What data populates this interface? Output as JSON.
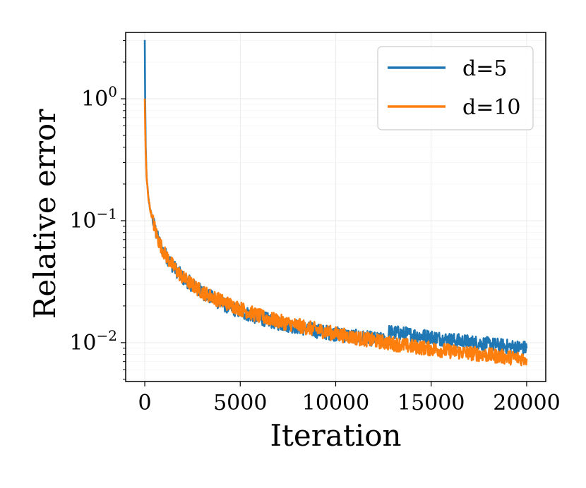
{
  "chart_data": {
    "type": "line",
    "title": "",
    "xlabel": "Iteration",
    "ylabel": "Relative error",
    "xscale": "linear",
    "yscale": "log",
    "xlim": [
      -1000,
      21000
    ],
    "ylim": [
      0.0048,
      3.5
    ],
    "grid": true,
    "legend_position": "top-right",
    "x_ticks": [
      {
        "value": 0,
        "label": "0"
      },
      {
        "value": 5000,
        "label": "5000"
      },
      {
        "value": 10000,
        "label": "10000"
      },
      {
        "value": 15000,
        "label": "15000"
      },
      {
        "value": 20000,
        "label": "20000"
      }
    ],
    "y_ticks": [
      {
        "value": 1,
        "base": "10",
        "exp": "0"
      },
      {
        "value": 0.1,
        "base": "10",
        "exp": "−1"
      },
      {
        "value": 0.01,
        "base": "10",
        "exp": "−2"
      }
    ],
    "series": [
      {
        "name": "d=5",
        "color": "#1f77b4",
        "x": [
          0,
          20,
          50,
          100,
          200,
          300,
          500,
          700,
          1000,
          1500,
          2000,
          3000,
          4000,
          5000,
          6000,
          7000,
          8000,
          9000,
          10000,
          11000,
          12000,
          12700,
          12800,
          13000,
          14000,
          15000,
          16000,
          17000,
          18000,
          19000,
          20000
        ],
        "y": [
          3.0,
          1.0,
          0.4,
          0.22,
          0.15,
          0.12,
          0.09,
          0.07,
          0.055,
          0.042,
          0.034,
          0.026,
          0.021,
          0.018,
          0.016,
          0.0145,
          0.0135,
          0.0125,
          0.0118,
          0.0112,
          0.0107,
          0.0104,
          0.0122,
          0.0121,
          0.0116,
          0.0111,
          0.0105,
          0.0101,
          0.0097,
          0.0093,
          0.009
        ]
      },
      {
        "name": "d=10",
        "color": "#ff7f0e",
        "x": [
          0,
          20,
          50,
          100,
          200,
          300,
          500,
          700,
          1000,
          1500,
          2000,
          3000,
          4000,
          5000,
          6000,
          7000,
          8000,
          9000,
          10000,
          11000,
          12000,
          13000,
          14000,
          15000,
          16000,
          17000,
          18000,
          19000,
          20000
        ],
        "y": [
          1.0,
          0.6,
          0.35,
          0.22,
          0.15,
          0.12,
          0.09,
          0.07,
          0.055,
          0.042,
          0.034,
          0.026,
          0.022,
          0.019,
          0.0165,
          0.015,
          0.0138,
          0.0128,
          0.0118,
          0.011,
          0.0104,
          0.0098,
          0.0093,
          0.0089,
          0.0085,
          0.0082,
          0.0079,
          0.0076,
          0.0074
        ]
      }
    ]
  }
}
